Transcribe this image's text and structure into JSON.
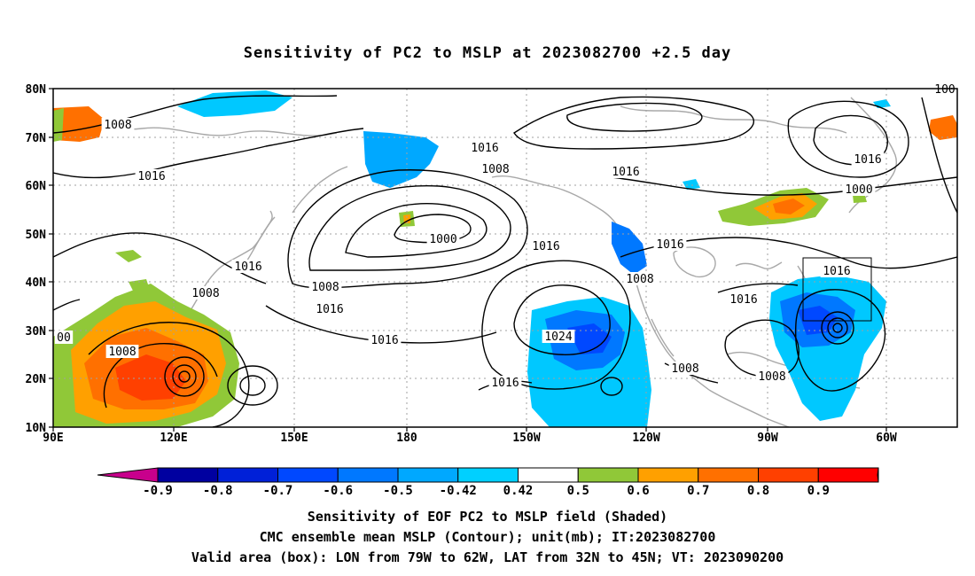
{
  "title": "Sensitivity of PC2 to MSLP at 2023082700 +2.5 day",
  "lat_labels": [
    "80N",
    "70N",
    "60N",
    "50N",
    "40N",
    "30N",
    "20N",
    "10N"
  ],
  "lon_labels": [
    "90E",
    "120E",
    "150E",
    "180",
    "150W",
    "120W",
    "90W",
    "60W"
  ],
  "contour_labels": [
    {
      "text": "1008"
    },
    {
      "text": "1008"
    },
    {
      "text": "1016"
    },
    {
      "text": "1016"
    },
    {
      "text": "1008"
    },
    {
      "text": "1016"
    },
    {
      "text": "1008"
    },
    {
      "text": "1016"
    },
    {
      "text": "1016"
    },
    {
      "text": "1000"
    },
    {
      "text": "1016"
    },
    {
      "text": "1008"
    },
    {
      "text": "1016"
    },
    {
      "text": "1016"
    },
    {
      "text": "1008"
    },
    {
      "text": "1016"
    },
    {
      "text": "1024"
    },
    {
      "text": "1016"
    },
    {
      "text": "1008"
    },
    {
      "text": "1016"
    },
    {
      "text": "1008"
    },
    {
      "text": "1016"
    },
    {
      "text": "1000"
    },
    {
      "text": "00"
    },
    {
      "text": "100"
    },
    {
      "text": "1008"
    }
  ],
  "colorbar": {
    "colors": [
      "#0000a0",
      "#0020d8",
      "#0048ff",
      "#0078ff",
      "#00a8ff",
      "#00d0ff",
      "#ffffff",
      "#90c838",
      "#ffa000",
      "#ff7000",
      "#ff4000",
      "#ff0000"
    ],
    "low_end_color": "#c8008c",
    "high_end_color": "#ffa0c8",
    "tick_labels": [
      "-0.9",
      "-0.8",
      "-0.7",
      "-0.6",
      "-0.5",
      "-0.42",
      "0.42",
      "0.5",
      "0.6",
      "0.7",
      "0.8",
      "0.9"
    ]
  },
  "footer": {
    "line1": "Sensitivity of EOF PC2 to MSLP field (Shaded)",
    "line2": "CMC ensemble mean MSLP (Contour); unit(mb); IT:2023082700",
    "line3": "Valid area (box): LON from 79W to 62W, LAT from 32N to 45N; VT: 2023090200"
  }
}
